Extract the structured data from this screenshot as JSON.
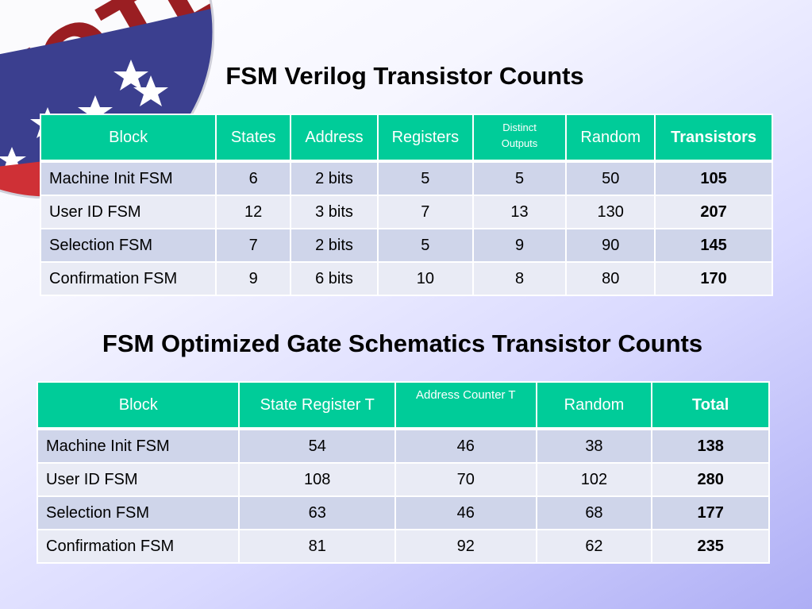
{
  "title1": "FSM Verilog Transistor Counts",
  "title2": "FSM Optimized Gate Schematics Transistor Counts",
  "table1": {
    "headers": [
      "Block",
      "States",
      "Address",
      "Registers",
      "Distinct Outputs",
      "Random",
      "Transistors"
    ],
    "header_line_break": [
      "Distinct",
      "Outputs"
    ],
    "rows": [
      [
        "Machine Init FSM",
        "6",
        "2 bits",
        "5",
        "5",
        "50",
        "105"
      ],
      [
        "User ID FSM",
        "12",
        "3 bits",
        "7",
        "13",
        "130",
        "207"
      ],
      [
        "Selection FSM",
        "7",
        "2 bits",
        "5",
        "9",
        "90",
        "145"
      ],
      [
        "Confirmation FSM",
        "9",
        "6 bits",
        "10",
        "8",
        "80",
        "170"
      ]
    ]
  },
  "table2": {
    "headers": [
      "Block",
      "State Register T",
      "Address Counter T",
      "Random",
      "Total"
    ],
    "rows": [
      [
        "Machine Init FSM",
        "54",
        "46",
        "38",
        "138"
      ],
      [
        "User ID FSM",
        "108",
        "70",
        "102",
        "280"
      ],
      [
        "Selection FSM",
        "63",
        "46",
        "68",
        "177"
      ],
      [
        "Confirmation FSM",
        "81",
        "92",
        "62",
        "235"
      ]
    ]
  },
  "colors": {
    "header_bg": "#00cc99",
    "row_odd": "#cfd5ea",
    "row_even": "#e9ebf5",
    "badge_red": "#d6353d",
    "badge_blue": "#3a3f8f"
  },
  "decor": {
    "badge_icon": "vote-badge-icon",
    "badge_text": "VOTE"
  }
}
